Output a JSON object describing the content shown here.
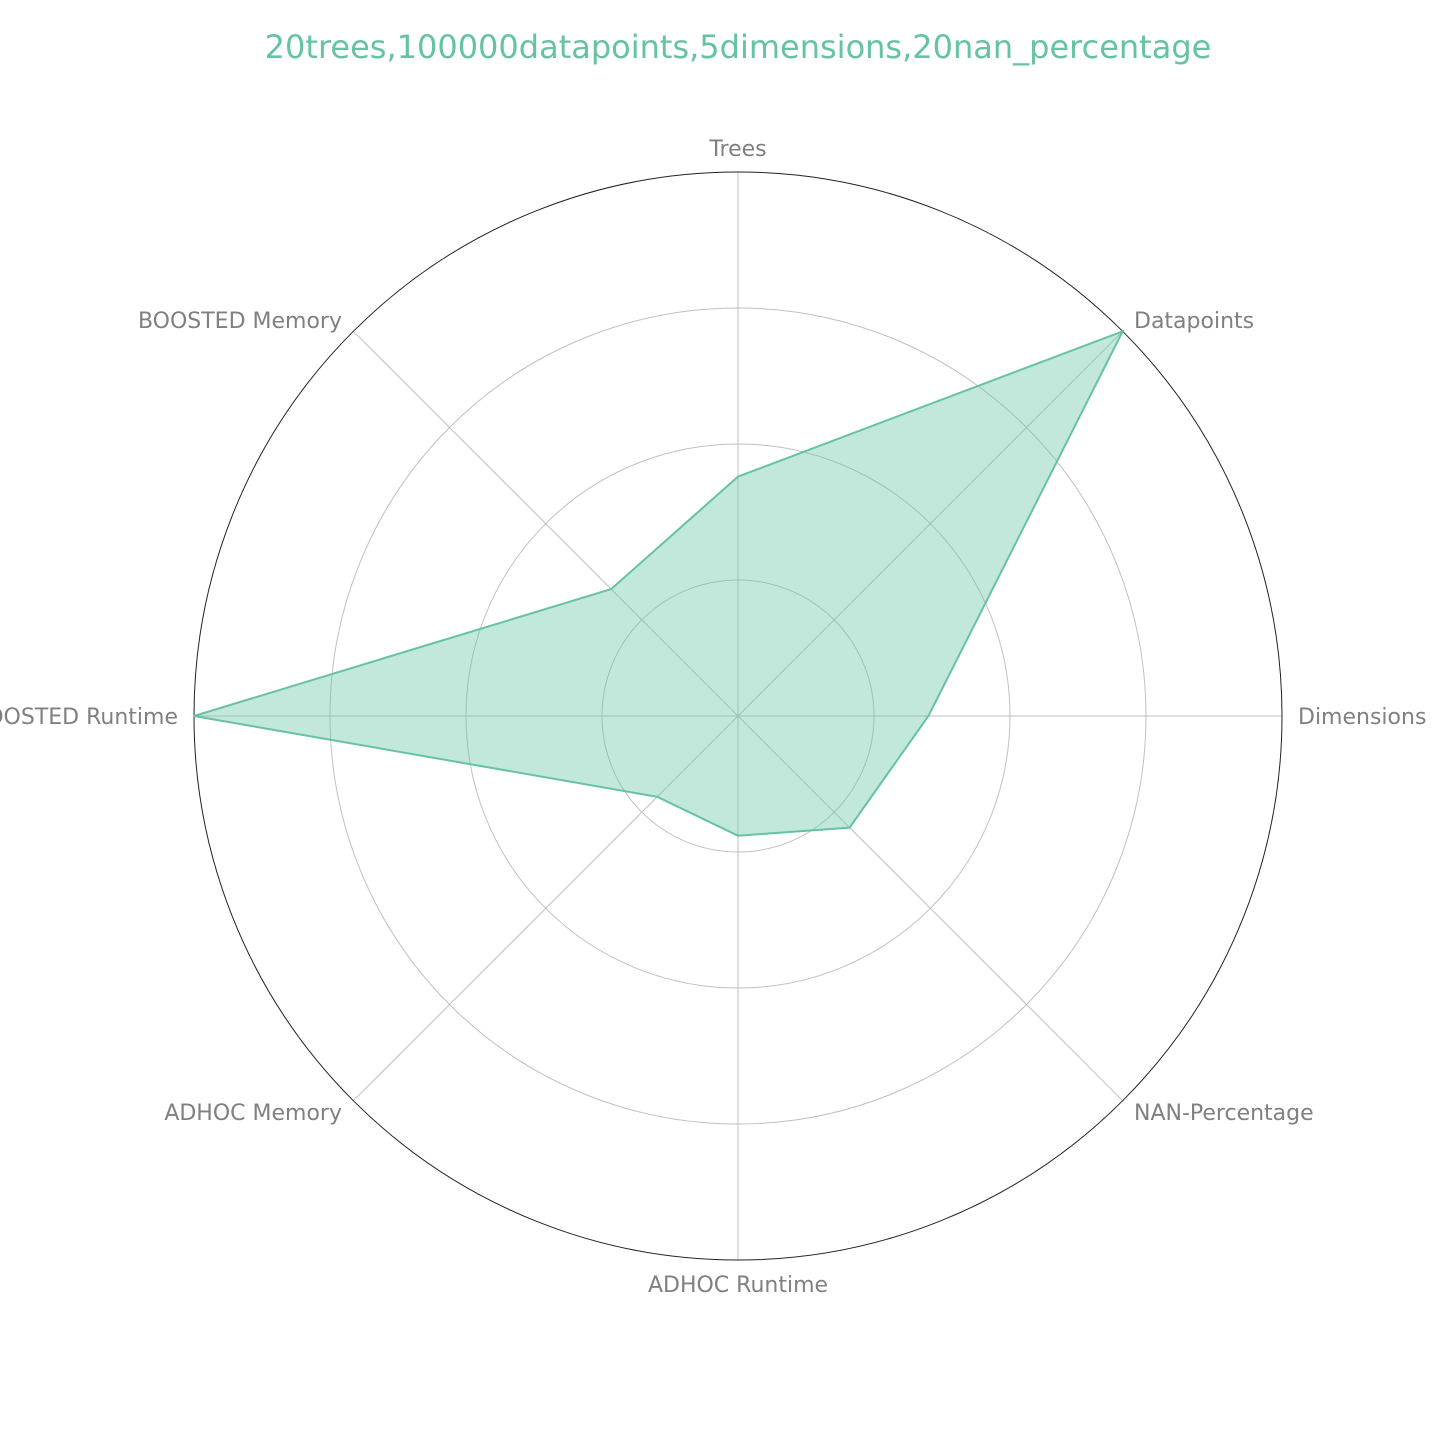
{
  "chart_data": {
    "type": "radar",
    "title": "20trees,100000datapoints,5dimensions,20nan_percentage",
    "axes": [
      "Trees",
      "Datapoints",
      "Dimensions",
      "NAN-Percentage",
      "ADHOC Runtime",
      "ADHOC Memory",
      "BOOSTED Runtime",
      "BOOSTED Memory"
    ],
    "values": [
      0.44,
      1.0,
      0.35,
      0.29,
      0.22,
      0.21,
      1.0,
      0.33
    ],
    "rlim": [
      0,
      1
    ],
    "grid_rings": 4,
    "grid": true,
    "color": "#66c2a5"
  }
}
